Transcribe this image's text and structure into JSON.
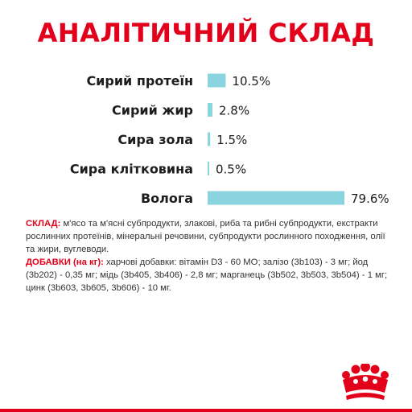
{
  "title": "АНАЛІТИЧНИЙ СКЛАД",
  "chart_data": {
    "type": "bar",
    "orientation": "horizontal",
    "categories": [
      "Сирий протеїн",
      "Сирий жир",
      "Сира зола",
      "Сира клітковина",
      "Волога"
    ],
    "values": [
      10.5,
      2.8,
      1.5,
      0.5,
      79.6
    ],
    "value_labels": [
      "10.5%",
      "2.8%",
      "1.5%",
      "0.5%",
      "79.6%"
    ],
    "unit": "%",
    "xlim": [
      0,
      79.6
    ],
    "grid": false,
    "legend": "none",
    "bar_color": "#8ad4e0"
  },
  "composition": {
    "ingredients_label": "СКЛАД:",
    "ingredients_text": " м'ясо та м'ясні субпродукти, злакові, риба та рибні субпродукти, екстракти рослинних протеїнів, мінеральні речовини, субпродукти рослинного походження, олії та жири, вуглеводи.",
    "additives_label": "ДОБАВКИ (на кг):",
    "additives_text": " харчові добавки: вітамін D3 - 60 МО; залізо (3b103) - 3 мг; йод (3b202) - 0,35 мг; мідь (3b405, 3b406) - 2,8 мг; марганець (3b502, 3b503, 3b504) - 1 мг; цинк (3b603, 3b605, 3b606) - 10 мг."
  },
  "colors": {
    "accent": "#e2001a",
    "text": "#1d1d1d"
  },
  "logo_icon": "royal-crown-icon"
}
